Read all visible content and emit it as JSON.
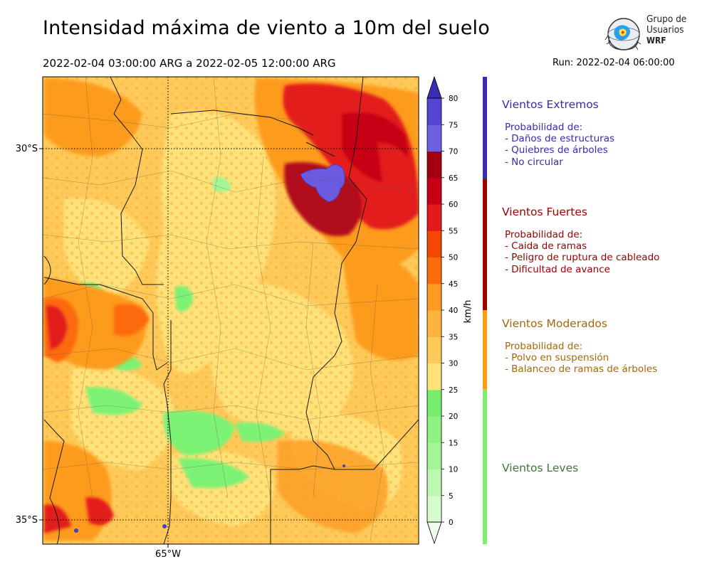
{
  "header": {
    "title": "Intensidad máxima de viento a 10m del suelo",
    "period": "2022-02-04 03:00:00 ARG  a  2022-02-05 12:00:00 ARG",
    "run": "Run: 2022-02-04 06:00:00"
  },
  "logo": {
    "line1": "Grupo de",
    "line2": "Usuarios",
    "line3": "WRF",
    "icon": "globe-satellite-icon"
  },
  "map": {
    "lat_labels": [
      "30°S",
      "35°S"
    ],
    "lon_labels": [
      "65°W"
    ],
    "colors": {
      "light": "#fde27a",
      "orange_light": "#fdbb4f",
      "orange": "#fd9b1f",
      "orange_dark": "#fc6a0c",
      "red": "#e31a1c",
      "red_dark": "#b10a1f",
      "green": "#7cf275",
      "purple": "#6a5be0"
    }
  },
  "colorbar": {
    "unit": "km/h",
    "ticks": [
      "0",
      "5",
      "10",
      "15",
      "20",
      "25",
      "30",
      "35",
      "40",
      "45",
      "50",
      "55",
      "60",
      "65",
      "70",
      "75",
      "80"
    ],
    "colors": [
      "#eefde9",
      "#d6fbcd",
      "#bdf8b2",
      "#a3f596",
      "#8ff183",
      "#78ec6d",
      "#fde27a",
      "#fdca5a",
      "#fdb43f",
      "#fd9a21",
      "#fc6c0e",
      "#f44805",
      "#e31a1c",
      "#c70014",
      "#a50011",
      "#6c5fe0",
      "#5545d4",
      "#4a3bc6",
      "#3b2cb4"
    ]
  },
  "legend": [
    {
      "title": "Vientos Extremos",
      "body": [
        "Probabilidad de:",
        "- Daños de estructuras",
        "- Quiebres de árboles",
        "- No circular"
      ],
      "color": "#3a2ab0"
    },
    {
      "title": "Vientos Fuertes",
      "body": [
        "Probabilidad de:",
        "- Caida de ramas",
        "- Peligro de ruptura de cableado",
        "- Dificultad de avance"
      ],
      "color": "#9b0000"
    },
    {
      "title": "Vientos Moderados",
      "body": [
        "Probabilidad de:",
        "- Polvo en suspensión",
        "- Balanceo de ramas de árboles"
      ],
      "color": "#a8660c"
    },
    {
      "title": "Vientos Leves",
      "body": [],
      "color": "#3a7a33"
    }
  ],
  "legend_bar_colors": [
    "#3a2ab0",
    "#9b0000",
    "#f99d0e",
    "#7ef06d"
  ]
}
